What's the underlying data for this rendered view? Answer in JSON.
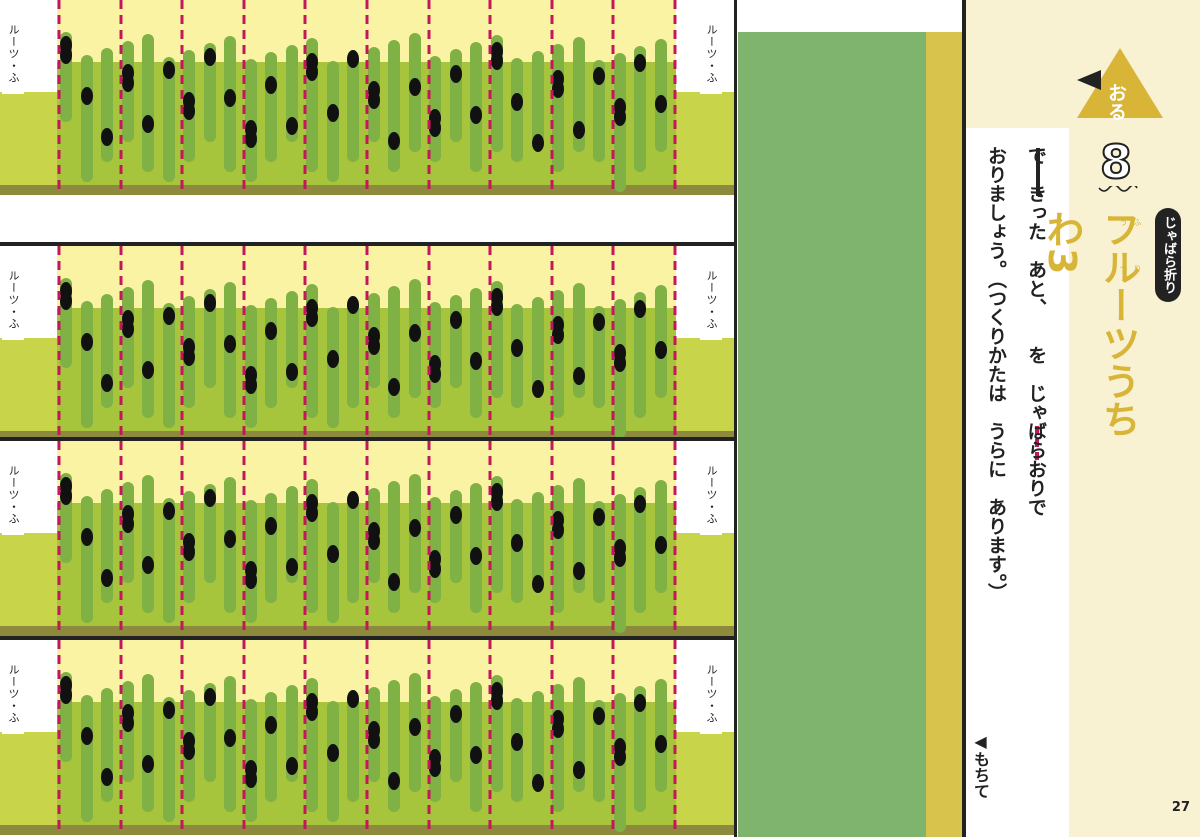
{
  "strips": {
    "side_label": "ルーツ・ふ",
    "count": 4
  },
  "panel": {
    "action_badge": "おる",
    "step_number": "8",
    "tag": "じゃばら折り",
    "title": "フルーツうちわ3",
    "title_ruby": "ふ り う つ",
    "instruction_line1": "で　きった　あと、　　を　じゃばらおりで",
    "instruction_line2": "おりましょう。（つくりかたは　うらに　あります。）",
    "hold_mark": "◀もちて",
    "page_number": "27"
  },
  "colors": {
    "pale_yellow": "#fbf3a4",
    "light_green": "#c8d54b",
    "kiwi_green": "#a7c43d",
    "stripe_green": "#7fb145",
    "seed": "#111111",
    "fold_dash": "#c2185b",
    "panel_green": "#7fb46e",
    "panel_gold": "#d8c34c",
    "title_gold": "#d8b437",
    "cream": "#f8f1d2"
  },
  "icons": {
    "action_badge_icon": "triangle-badge-icon",
    "hold_arrow_icon": "left-triangle-icon"
  }
}
